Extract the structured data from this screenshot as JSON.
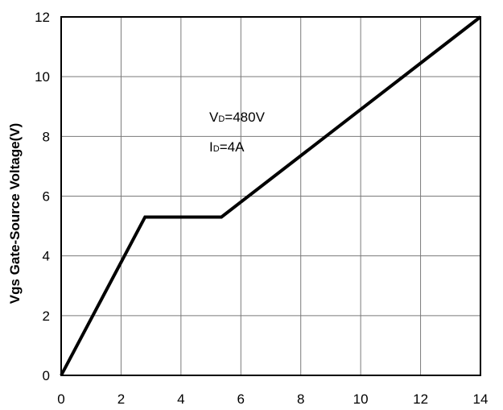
{
  "chart_data": {
    "type": "line",
    "title": "",
    "xlabel": "",
    "ylabel": "Vgs Gate-Source Voltage(V)",
    "xlim": [
      0,
      14
    ],
    "ylim": [
      0,
      12
    ],
    "xticks": [
      "0",
      "2",
      "4",
      "6",
      "8",
      "10",
      "12",
      "14"
    ],
    "yticks": [
      "0",
      "2",
      "4",
      "6",
      "8",
      "10",
      "12"
    ],
    "grid": true,
    "series": [
      {
        "x": [
          0,
          2.8,
          5.35,
          14
        ],
        "y": [
          0,
          5.3,
          5.3,
          12
        ],
        "color": "#000000"
      }
    ],
    "annotations": [
      {
        "main": "V",
        "sub": "D",
        "rest": "=480V"
      },
      {
        "main": "I",
        "sub": "D",
        "rest": "=4A"
      }
    ]
  }
}
